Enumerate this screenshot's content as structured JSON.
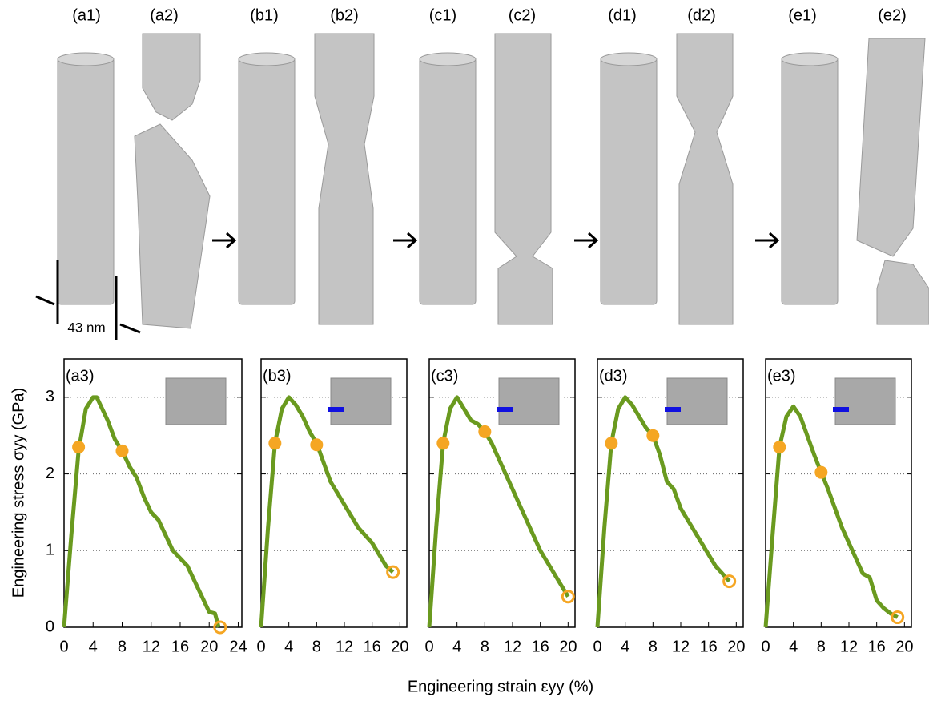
{
  "panels": [
    "(a1)",
    "(a2)",
    "(b1)",
    "(b2)",
    "(c1)",
    "(c2)",
    "(d1)",
    "(d2)",
    "(e1)",
    "(e2)"
  ],
  "scale_label": "43 nm",
  "xlabel": "Engineering strain εyy (%)",
  "chart_data": [
    {
      "type": "line",
      "label": "(a3)",
      "ylabel": "Engineering stress σyy (GPa)",
      "color": "#6a9a1f",
      "marker_color": "#f5a623",
      "x": [
        0,
        1,
        2,
        3,
        4,
        4.5,
        5,
        6,
        7,
        8,
        9,
        10,
        11,
        12,
        13,
        14,
        15,
        16,
        17,
        18,
        19,
        20,
        20.8,
        21.3
      ],
      "values": [
        0,
        1.2,
        2.3,
        2.85,
        3.0,
        3.0,
        2.9,
        2.7,
        2.45,
        2.3,
        2.1,
        1.95,
        1.7,
        1.5,
        1.4,
        1.2,
        1.0,
        0.9,
        0.8,
        0.6,
        0.4,
        0.2,
        0.18,
        0
      ],
      "highlights": {
        "x": [
          2,
          8
        ],
        "values": [
          2.35,
          2.3
        ]
      },
      "end": {
        "x": [
          21.5
        ],
        "values": [
          0
        ]
      },
      "xlim": [
        0,
        24.5
      ],
      "ylim": [
        0,
        3.5
      ],
      "xticks": [
        0,
        4,
        8,
        12,
        16,
        20,
        24
      ],
      "yticks": [
        0,
        1,
        2,
        3
      ],
      "grid": true
    },
    {
      "type": "line",
      "label": "(b3)",
      "color": "#6a9a1f",
      "marker_color": "#f5a623",
      "x": [
        0,
        1,
        2,
        3,
        4,
        5,
        6,
        7,
        8,
        9,
        10,
        11,
        12,
        13,
        14,
        15,
        16,
        17,
        18,
        19
      ],
      "values": [
        0,
        1.3,
        2.4,
        2.85,
        3.0,
        2.9,
        2.75,
        2.55,
        2.4,
        2.15,
        1.9,
        1.75,
        1.6,
        1.45,
        1.3,
        1.2,
        1.1,
        0.95,
        0.8,
        0.72
      ],
      "highlights": {
        "x": [
          2,
          8
        ],
        "values": [
          2.4,
          2.38
        ]
      },
      "end": {
        "x": [
          19
        ],
        "values": [
          0.72
        ]
      },
      "xlim": [
        0,
        21
      ],
      "ylim": [
        0,
        3.5
      ],
      "xticks": [
        0,
        4,
        8,
        12,
        16,
        20
      ],
      "yticks": [
        0,
        1,
        2,
        3
      ],
      "grid": true
    },
    {
      "type": "line",
      "label": "(c3)",
      "color": "#6a9a1f",
      "marker_color": "#f5a623",
      "x": [
        0,
        1,
        2,
        3,
        4,
        5,
        6,
        7,
        8,
        9,
        10,
        11,
        12,
        13,
        14,
        15,
        16,
        17,
        18,
        19,
        20
      ],
      "values": [
        0,
        1.3,
        2.4,
        2.85,
        3.0,
        2.85,
        2.7,
        2.65,
        2.55,
        2.4,
        2.2,
        2.0,
        1.8,
        1.6,
        1.4,
        1.2,
        1.0,
        0.85,
        0.7,
        0.55,
        0.4
      ],
      "highlights": {
        "x": [
          2,
          8
        ],
        "values": [
          2.4,
          2.55
        ]
      },
      "end": {
        "x": [
          20
        ],
        "values": [
          0.4
        ]
      },
      "xlim": [
        0,
        21
      ],
      "ylim": [
        0,
        3.5
      ],
      "xticks": [
        0,
        4,
        8,
        12,
        16,
        20
      ],
      "yticks": [
        0,
        1,
        2,
        3
      ],
      "grid": true
    },
    {
      "type": "line",
      "label": "(d3)",
      "color": "#6a9a1f",
      "marker_color": "#f5a623",
      "x": [
        0,
        1,
        2,
        3,
        4,
        5,
        6,
        7,
        8,
        9,
        10,
        11,
        12,
        13,
        14,
        15,
        16,
        17,
        18,
        19
      ],
      "values": [
        0,
        1.3,
        2.4,
        2.85,
        3.0,
        2.9,
        2.75,
        2.6,
        2.5,
        2.25,
        1.9,
        1.8,
        1.55,
        1.4,
        1.25,
        1.1,
        0.95,
        0.8,
        0.7,
        0.6
      ],
      "highlights": {
        "x": [
          2,
          8
        ],
        "values": [
          2.4,
          2.5
        ]
      },
      "end": {
        "x": [
          19
        ],
        "values": [
          0.6
        ]
      },
      "xlim": [
        0,
        21
      ],
      "ylim": [
        0,
        3.5
      ],
      "xticks": [
        0,
        4,
        8,
        12,
        16,
        20
      ],
      "yticks": [
        0,
        1,
        2,
        3
      ],
      "grid": true
    },
    {
      "type": "line",
      "label": "(e3)",
      "color": "#6a9a1f",
      "marker_color": "#f5a623",
      "x": [
        0,
        1,
        2,
        3,
        4,
        5,
        6,
        7,
        8,
        9,
        10,
        11,
        12,
        13,
        14,
        15,
        16,
        17,
        18,
        19
      ],
      "values": [
        0,
        1.2,
        2.35,
        2.75,
        2.88,
        2.75,
        2.5,
        2.25,
        2.02,
        1.8,
        1.55,
        1.3,
        1.1,
        0.9,
        0.7,
        0.65,
        0.35,
        0.25,
        0.18,
        0.13
      ],
      "highlights": {
        "x": [
          2,
          8
        ],
        "values": [
          2.35,
          2.02
        ]
      },
      "end": {
        "x": [
          19
        ],
        "values": [
          0.13
        ]
      },
      "xlim": [
        0,
        21
      ],
      "ylim": [
        0,
        3.5
      ],
      "xticks": [
        0,
        4,
        8,
        12,
        16,
        20
      ],
      "yticks": [
        0,
        1,
        2,
        3
      ],
      "grid": true
    }
  ]
}
